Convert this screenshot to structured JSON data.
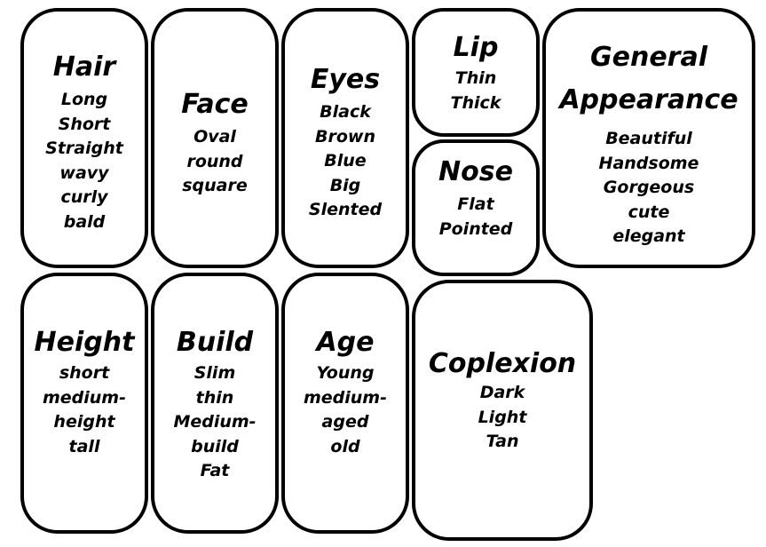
{
  "cards": {
    "hair": {
      "title": "Hair",
      "items": [
        "Long",
        "Short",
        "Straight",
        "wavy",
        "curly",
        "bald"
      ]
    },
    "face": {
      "title": "Face",
      "items": [
        "Oval",
        "round",
        "square"
      ]
    },
    "eyes": {
      "title": "Eyes",
      "items": [
        "Black",
        "Brown",
        "Blue",
        "Big",
        "Slented"
      ]
    },
    "lip": {
      "title": "Lip",
      "items": [
        "Thin",
        "Thick"
      ]
    },
    "nose": {
      "title": "Nose",
      "items": [
        "Flat",
        "Pointed"
      ]
    },
    "general": {
      "title": "General Appearance",
      "items": [
        "Beautiful",
        "Handsome",
        "Gorgeous",
        "cute",
        "elegant"
      ]
    },
    "height": {
      "title": "Height",
      "items": [
        "short",
        "medium-",
        "height",
        "tall"
      ]
    },
    "build": {
      "title": "Build",
      "items": [
        "Slim",
        "thin",
        "Medium-",
        "build",
        "Fat"
      ]
    },
    "age": {
      "title": "Age",
      "items": [
        "Young",
        "medium-",
        "aged",
        "old"
      ]
    },
    "complexion": {
      "title": "Coplexion",
      "items": [
        "Dark",
        "Light",
        "Tan"
      ]
    }
  }
}
